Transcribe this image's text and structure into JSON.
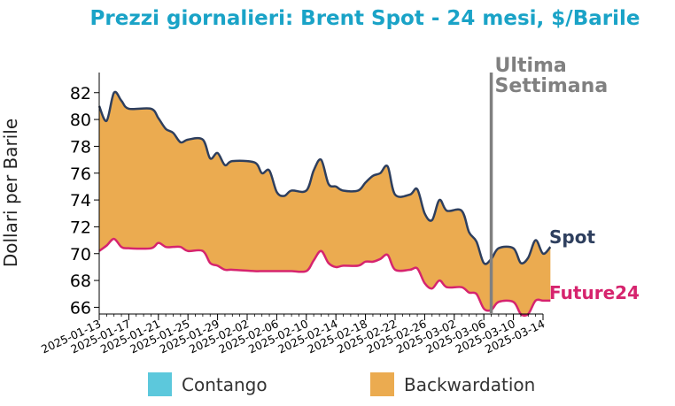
{
  "chart_data": {
    "type": "area",
    "title": "Prezzi giornalieri: Brent Spot - 24 mesi, $/Barile",
    "ylabel": "Dollari per Barile",
    "xlabel": "",
    "ylim": [
      65.5,
      83.5
    ],
    "yticks": [
      66,
      68,
      70,
      72,
      74,
      76,
      78,
      80,
      82
    ],
    "x_start": "2025-01-13",
    "x_end": "2025-03-14",
    "xticks": [
      "2025-01-13",
      "2025-01-17",
      "2025-01-21",
      "2025-01-25",
      "2025-01-29",
      "2025-02-02",
      "2025-02-06",
      "2025-02-10",
      "2025-02-14",
      "2025-02-18",
      "2025-02-22",
      "2025-02-26",
      "2025-03-02",
      "2025-03-06",
      "2025-03-10",
      "2025-03-14"
    ],
    "colors": {
      "title": "#1aa3c7",
      "spot": "#2e3f5e",
      "future": "#d6246e",
      "backwardation": "#ebab50",
      "contango": "#5cc8dc",
      "marker": "#808080"
    },
    "marker": {
      "date": "2025-03-07",
      "label_line1": "Ultima",
      "label_line2": "Settimana"
    },
    "series": [
      {
        "name": "Spot",
        "points": [
          [
            "2025-01-13",
            81.0
          ],
          [
            "2025-01-14",
            79.9
          ],
          [
            "2025-01-15",
            82.0
          ],
          [
            "2025-01-16",
            81.4
          ],
          [
            "2025-01-17",
            80.8
          ],
          [
            "2025-01-20",
            80.8
          ],
          [
            "2025-01-21",
            80.1
          ],
          [
            "2025-01-22",
            79.3
          ],
          [
            "2025-01-23",
            79.0
          ],
          [
            "2025-01-24",
            78.3
          ],
          [
            "2025-01-25",
            78.5
          ],
          [
            "2025-01-27",
            78.5
          ],
          [
            "2025-01-28",
            77.1
          ],
          [
            "2025-01-29",
            77.5
          ],
          [
            "2025-01-30",
            76.6
          ],
          [
            "2025-01-31",
            76.9
          ],
          [
            "2025-02-03",
            76.8
          ],
          [
            "2025-02-04",
            76.0
          ],
          [
            "2025-02-05",
            76.2
          ],
          [
            "2025-02-06",
            74.6
          ],
          [
            "2025-02-07",
            74.3
          ],
          [
            "2025-02-08",
            74.7
          ],
          [
            "2025-02-10",
            74.7
          ],
          [
            "2025-02-11",
            76.2
          ],
          [
            "2025-02-12",
            77.0
          ],
          [
            "2025-02-13",
            75.2
          ],
          [
            "2025-02-14",
            75.0
          ],
          [
            "2025-02-15",
            74.7
          ],
          [
            "2025-02-17",
            74.7
          ],
          [
            "2025-02-18",
            75.3
          ],
          [
            "2025-02-19",
            75.8
          ],
          [
            "2025-02-20",
            76.0
          ],
          [
            "2025-02-21",
            76.5
          ],
          [
            "2025-02-22",
            74.4
          ],
          [
            "2025-02-24",
            74.4
          ],
          [
            "2025-02-25",
            74.8
          ],
          [
            "2025-02-26",
            73.0
          ],
          [
            "2025-02-27",
            72.5
          ],
          [
            "2025-02-28",
            74.0
          ],
          [
            "2025-03-01",
            73.2
          ],
          [
            "2025-03-03",
            73.2
          ],
          [
            "2025-03-04",
            71.6
          ],
          [
            "2025-03-05",
            70.9
          ],
          [
            "2025-03-06",
            69.3
          ],
          [
            "2025-03-07",
            69.6
          ],
          [
            "2025-03-08",
            70.4
          ],
          [
            "2025-03-10",
            70.4
          ],
          [
            "2025-03-11",
            69.3
          ],
          [
            "2025-03-12",
            69.7
          ],
          [
            "2025-03-13",
            71.0
          ],
          [
            "2025-03-14",
            70.0
          ],
          [
            "2025-03-15",
            70.5
          ]
        ]
      },
      {
        "name": "Future24",
        "points": [
          [
            "2025-01-13",
            70.2
          ],
          [
            "2025-01-14",
            70.6
          ],
          [
            "2025-01-15",
            71.1
          ],
          [
            "2025-01-16",
            70.5
          ],
          [
            "2025-01-17",
            70.4
          ],
          [
            "2025-01-20",
            70.4
          ],
          [
            "2025-01-21",
            70.8
          ],
          [
            "2025-01-22",
            70.5
          ],
          [
            "2025-01-23",
            70.5
          ],
          [
            "2025-01-24",
            70.5
          ],
          [
            "2025-01-25",
            70.2
          ],
          [
            "2025-01-27",
            70.2
          ],
          [
            "2025-01-28",
            69.3
          ],
          [
            "2025-01-29",
            69.1
          ],
          [
            "2025-01-30",
            68.8
          ],
          [
            "2025-01-31",
            68.8
          ],
          [
            "2025-02-03",
            68.7
          ],
          [
            "2025-02-04",
            68.7
          ],
          [
            "2025-02-05",
            68.7
          ],
          [
            "2025-02-06",
            68.7
          ],
          [
            "2025-02-07",
            68.7
          ],
          [
            "2025-02-08",
            68.7
          ],
          [
            "2025-02-10",
            68.7
          ],
          [
            "2025-02-11",
            69.5
          ],
          [
            "2025-02-12",
            70.2
          ],
          [
            "2025-02-13",
            69.3
          ],
          [
            "2025-02-14",
            69.0
          ],
          [
            "2025-02-15",
            69.1
          ],
          [
            "2025-02-17",
            69.1
          ],
          [
            "2025-02-18",
            69.4
          ],
          [
            "2025-02-19",
            69.4
          ],
          [
            "2025-02-20",
            69.6
          ],
          [
            "2025-02-21",
            69.9
          ],
          [
            "2025-02-22",
            68.8
          ],
          [
            "2025-02-24",
            68.8
          ],
          [
            "2025-02-25",
            68.9
          ],
          [
            "2025-02-26",
            67.8
          ],
          [
            "2025-02-27",
            67.4
          ],
          [
            "2025-02-28",
            68.0
          ],
          [
            "2025-03-01",
            67.5
          ],
          [
            "2025-03-03",
            67.5
          ],
          [
            "2025-03-04",
            67.1
          ],
          [
            "2025-03-05",
            67.0
          ],
          [
            "2025-03-06",
            65.9
          ],
          [
            "2025-03-07",
            65.8
          ],
          [
            "2025-03-08",
            66.4
          ],
          [
            "2025-03-10",
            66.4
          ],
          [
            "2025-03-11",
            65.5
          ],
          [
            "2025-03-12",
            65.5
          ],
          [
            "2025-03-13",
            66.5
          ],
          [
            "2025-03-14",
            66.5
          ],
          [
            "2025-03-15",
            66.5
          ]
        ]
      }
    ],
    "legend": {
      "placement": "bottom",
      "entries": [
        {
          "label": "Contango",
          "color": "#5cc8dc"
        },
        {
          "label": "Backwardation",
          "color": "#ebab50"
        }
      ]
    }
  }
}
